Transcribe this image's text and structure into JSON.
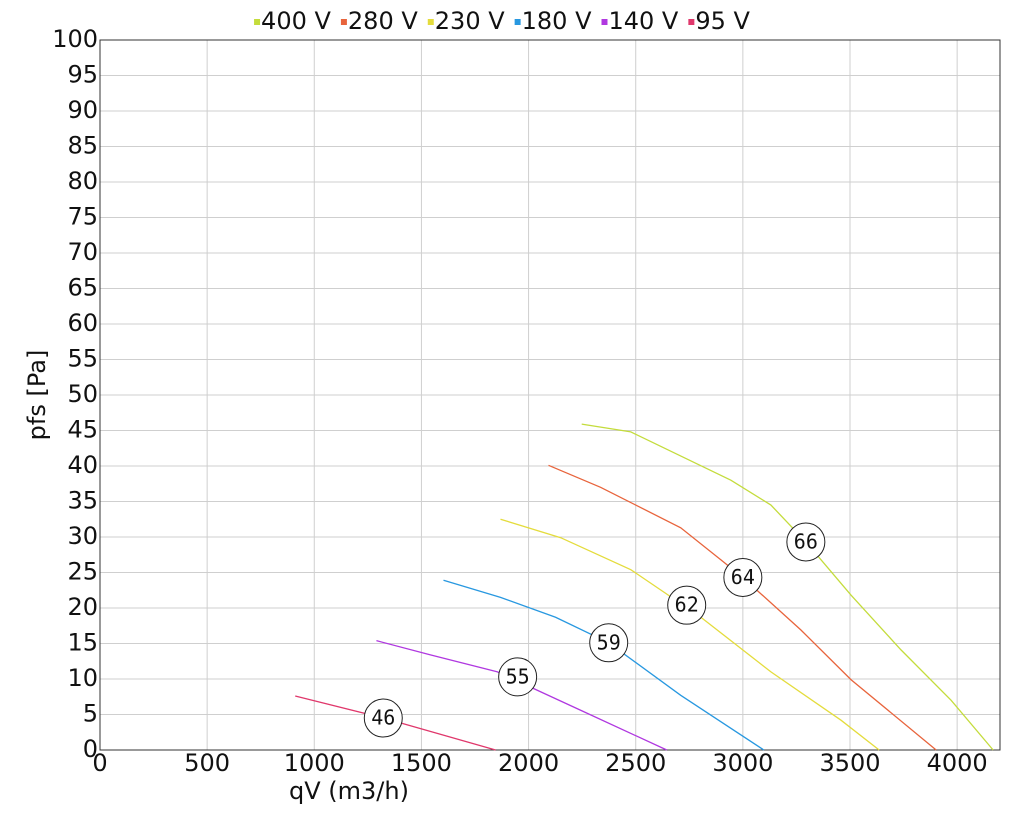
{
  "chart_data": {
    "type": "line",
    "x_label": "qV (m3/h)",
    "y_label": "pfs [Pa]",
    "xlim": [
      0,
      4200
    ],
    "ylim": [
      0,
      100
    ],
    "xticks": [
      0,
      500,
      1000,
      1500,
      2000,
      2500,
      3000,
      3500,
      4000
    ],
    "yticks": [
      0,
      5,
      10,
      15,
      20,
      25,
      30,
      35,
      40,
      45,
      50,
      55,
      60,
      65,
      70,
      75,
      80,
      85,
      90,
      95,
      100
    ],
    "grid": true,
    "legend": "top",
    "series": [
      {
        "name": "400 V",
        "color": "#c4dc3c",
        "x": [
          2248,
          2477,
          2944,
          3131,
          3294,
          3505,
          3738,
          3972,
          4168
        ],
        "values": [
          45.9,
          44.8,
          38.0,
          34.5,
          29.3,
          21.8,
          14.1,
          7.0,
          0
        ]
      },
      {
        "name": "280 V",
        "color": "#e8643c",
        "x": [
          2093,
          2336,
          2710,
          2897,
          3000,
          3271,
          3505,
          3902
        ],
        "values": [
          40.1,
          37.0,
          31.3,
          26.8,
          24.3,
          16.9,
          9.9,
          0
        ]
      },
      {
        "name": "230 V",
        "color": "#e4dc3c",
        "x": [
          1869,
          2150,
          2477,
          2804,
          3131,
          3458,
          3636
        ],
        "values": [
          32.5,
          29.9,
          25.4,
          18.7,
          11.0,
          4.2,
          0
        ]
      },
      {
        "name": "180 V",
        "color": "#2898e0",
        "x": [
          1603,
          1869,
          2126,
          2374,
          2710,
          3098
        ],
        "values": [
          23.9,
          21.5,
          18.7,
          15.1,
          7.7,
          0
        ]
      },
      {
        "name": "140 V",
        "color": "#b038e0",
        "x": [
          1290,
          1542,
          1855,
          2243,
          2645
        ],
        "values": [
          15.4,
          13.4,
          11.0,
          5.6,
          0
        ]
      },
      {
        "name": "95 V",
        "color": "#e0386c",
        "x": [
          911,
          1322,
          1846
        ],
        "values": [
          7.6,
          4.5,
          0
        ]
      }
    ],
    "annotations": [
      {
        "text": "66",
        "x": 3294,
        "y": 29.3
      },
      {
        "text": "64",
        "x": 3000,
        "y": 24.3
      },
      {
        "text": "62",
        "x": 2738,
        "y": 20.4
      },
      {
        "text": "59",
        "x": 2374,
        "y": 15.1
      },
      {
        "text": "55",
        "x": 1949,
        "y": 10.3
      },
      {
        "text": "46",
        "x": 1322,
        "y": 4.5
      }
    ]
  }
}
